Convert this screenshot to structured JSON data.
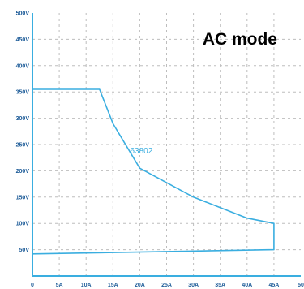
{
  "chart_data": {
    "type": "line",
    "title": "AC mode",
    "xlabel": "",
    "ylabel": "",
    "xlim": [
      0,
      50
    ],
    "ylim": [
      0,
      500
    ],
    "grid": true,
    "x_ticks": [
      0,
      5,
      10,
      15,
      20,
      25,
      30,
      35,
      40,
      45,
      50
    ],
    "x_tick_labels": [
      "0",
      "5A",
      "10A",
      "15A",
      "20A",
      "25A",
      "30A",
      "35A",
      "40A",
      "45A",
      "50"
    ],
    "y_ticks": [
      50,
      100,
      150,
      200,
      250,
      300,
      350,
      400,
      450,
      500
    ],
    "y_tick_labels": [
      "50V",
      "100V",
      "150V",
      "200V",
      "250V",
      "300V",
      "350V",
      "400V",
      "450V",
      "500V"
    ],
    "series": [
      {
        "name": "63802",
        "color": "#3aaee0",
        "x": [
          0,
          12.5,
          15,
          20,
          30,
          40,
          45,
          45,
          0
        ],
        "y": [
          355,
          355,
          290,
          205,
          150,
          110,
          100,
          50,
          42
        ]
      }
    ],
    "colors": {
      "axis": "#3aaee0",
      "grid": "#bdbdbd",
      "tick_text": "#1f5d99",
      "title_text": "#000000"
    }
  }
}
